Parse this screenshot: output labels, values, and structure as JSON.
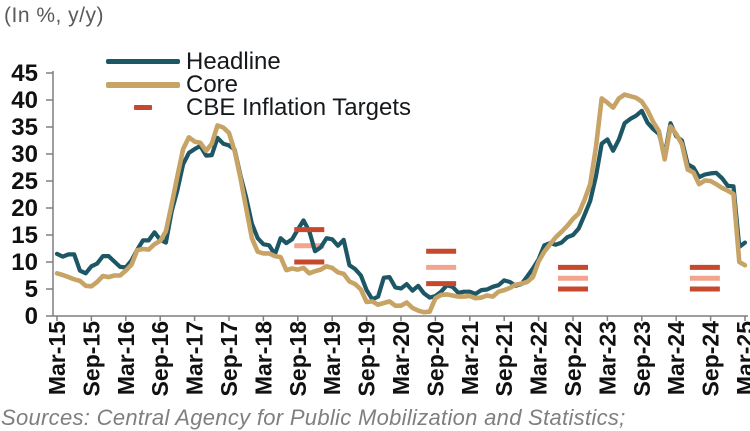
{
  "title": "(In %, y/y)",
  "source_note": "Sources: Central Agency for Public Mobilization and Statistics;",
  "chart_data": {
    "type": "line",
    "title": "(In %, y/y)",
    "x_range": [
      "Mar-15",
      "Mar-25"
    ],
    "x_frequency": "monthly",
    "x_tick_labels": [
      "Mar-15",
      "Sep-15",
      "Mar-16",
      "Sep-16",
      "Mar-17",
      "Sep-17",
      "Mar-18",
      "Sep-18",
      "Mar-19",
      "Sep-19",
      "Mar-20",
      "Sep-20",
      "Mar-21",
      "Sep-21",
      "Mar-22",
      "Sep-22",
      "Mar-23",
      "Sep-23",
      "Mar-24",
      "Sep-24",
      "Mar-25"
    ],
    "y_axis": {
      "min": 0,
      "max": 45,
      "step": 5
    },
    "y_tick_labels": [
      0,
      5,
      10,
      15,
      20,
      25,
      30,
      35,
      40,
      45
    ],
    "grid": "off",
    "legend_position": "top-center",
    "axis_color": "#7f7f7f",
    "series": [
      {
        "name": "Headline",
        "color": "#1d5766",
        "start": "Mar-15",
        "values": [
          11.5,
          11.0,
          11.4,
          11.4,
          8.4,
          7.9,
          9.2,
          9.7,
          11.1,
          11.1,
          10.1,
          9.1,
          9.0,
          10.3,
          12.3,
          14.0,
          14.0,
          15.5,
          14.1,
          13.6,
          19.4,
          23.3,
          28.1,
          30.2,
          30.9,
          31.5,
          29.7,
          29.8,
          33.0,
          31.9,
          31.6,
          30.8,
          26.0,
          21.9,
          17.1,
          14.4,
          13.3,
          13.1,
          11.4,
          14.4,
          13.5,
          14.2,
          16.0,
          17.7,
          15.7,
          12.0,
          12.7,
          14.4,
          14.2,
          13.0,
          14.1,
          9.4,
          8.7,
          7.5,
          4.8,
          3.1,
          3.6,
          7.1,
          7.2,
          5.3,
          5.1,
          5.9,
          4.7,
          5.6,
          4.2,
          3.4,
          3.7,
          4.5,
          5.7,
          5.4,
          4.3,
          4.5,
          4.5,
          4.1,
          4.8,
          4.9,
          5.4,
          5.7,
          6.6,
          6.3,
          5.6,
          5.9,
          7.3,
          8.8,
          10.5,
          13.1,
          13.5,
          13.2,
          13.6,
          14.6,
          15.0,
          16.2,
          18.7,
          21.3,
          25.8,
          31.9,
          32.7,
          30.6,
          32.7,
          35.7,
          36.5,
          37.1,
          38.0,
          35.8,
          34.6,
          33.7,
          29.8,
          35.7,
          33.3,
          32.5,
          28.1,
          27.5,
          25.7,
          26.2,
          26.4,
          26.5,
          25.5,
          24.1,
          24.0,
          12.8,
          13.6
        ]
      },
      {
        "name": "Core",
        "color": "#c7a466",
        "start": "Mar-15",
        "values": [
          7.9,
          7.6,
          7.2,
          6.8,
          6.5,
          5.6,
          5.5,
          6.3,
          7.4,
          7.2,
          7.5,
          7.5,
          8.4,
          9.5,
          12.2,
          12.4,
          12.3,
          13.3,
          13.9,
          15.7,
          20.7,
          25.9,
          30.9,
          33.1,
          32.3,
          32.1,
          30.6,
          31.9,
          35.3,
          34.9,
          33.9,
          30.5,
          25.5,
          19.9,
          14.4,
          11.9,
          11.6,
          11.6,
          11.1,
          10.9,
          8.5,
          8.8,
          8.6,
          8.9,
          7.9,
          8.3,
          8.6,
          9.2,
          8.9,
          8.1,
          7.8,
          6.4,
          5.9,
          4.9,
          2.6,
          2.7,
          2.1,
          2.4,
          2.7,
          1.9,
          1.9,
          2.5,
          1.5,
          1.0,
          0.7,
          0.8,
          3.3,
          3.9,
          4.0,
          3.8,
          3.6,
          3.6,
          3.7,
          3.3,
          3.4,
          3.8,
          3.6,
          4.5,
          4.8,
          5.2,
          5.8,
          6.0,
          6.3,
          7.2,
          10.1,
          11.9,
          13.3,
          14.6,
          15.6,
          16.7,
          18.0,
          19.0,
          21.5,
          24.4,
          31.2,
          40.3,
          39.5,
          38.6,
          40.3,
          41.0,
          40.7,
          40.4,
          39.7,
          38.1,
          35.9,
          34.2,
          29.0,
          35.1,
          33.7,
          31.8,
          27.1,
          26.6,
          24.4,
          25.1,
          25.0,
          24.4,
          23.7,
          23.2,
          22.6,
          10.0,
          9.4
        ]
      }
    ],
    "targets": {
      "name": "CBE Inflation Targets",
      "color": "#c6492d",
      "mid_color": "#f2a48e",
      "clusters": [
        {
          "approx_date": "Nov-18",
          "month_index": 44,
          "upper": 16,
          "mid": 13,
          "lower": 10
        },
        {
          "approx_date": "Oct-20",
          "month_index": 67,
          "upper": 12,
          "mid": 9,
          "lower": 6
        },
        {
          "approx_date": "Sep-22",
          "month_index": 90,
          "upper": 9,
          "mid": 7,
          "lower": 5
        },
        {
          "approx_date": "Sep-24",
          "month_index": 113,
          "upper": 9,
          "mid": 7,
          "lower": 5
        }
      ]
    }
  }
}
